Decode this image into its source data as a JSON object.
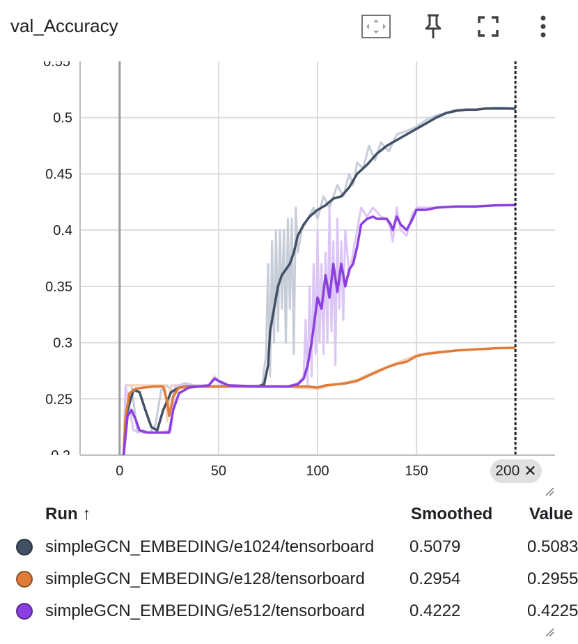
{
  "header": {
    "title": "val_Accuracy",
    "icons": [
      "fit-domain-icon",
      "pin-icon",
      "fullscreen-icon",
      "more-vert-icon"
    ]
  },
  "chart_data": {
    "type": "line",
    "title": "val_Accuracy",
    "xlabel": "",
    "ylabel": "",
    "xlim": [
      -20,
      220
    ],
    "ylim": [
      0.2,
      0.55
    ],
    "x_ticks": [
      "0",
      "50",
      "100",
      "150",
      "200"
    ],
    "y_ticks": [
      "0.25",
      "0.3",
      "0.35",
      "0.4",
      "0.45",
      "0.5"
    ],
    "grid": true,
    "selected_step": "200",
    "series": [
      {
        "name": "simpleGCN_EMBEDING/e1024/tensorboard",
        "color": "#425066",
        "raw_color": "#c7cdd8",
        "smoothed": [
          [
            2,
            0.2
          ],
          [
            4,
            0.24
          ],
          [
            7,
            0.258
          ],
          [
            10,
            0.256
          ],
          [
            13,
            0.24
          ],
          [
            16,
            0.225
          ],
          [
            19,
            0.222
          ],
          [
            22,
            0.24
          ],
          [
            26,
            0.256
          ],
          [
            30,
            0.26
          ],
          [
            35,
            0.261
          ],
          [
            40,
            0.261
          ],
          [
            50,
            0.261
          ],
          [
            60,
            0.261
          ],
          [
            70,
            0.261
          ],
          [
            73,
            0.263
          ],
          [
            75,
            0.28
          ],
          [
            76,
            0.31
          ],
          [
            78,
            0.33
          ],
          [
            80,
            0.35
          ],
          [
            82,
            0.36
          ],
          [
            84,
            0.365
          ],
          [
            86,
            0.37
          ],
          [
            88,
            0.38
          ],
          [
            90,
            0.395
          ],
          [
            93,
            0.405
          ],
          [
            96,
            0.412
          ],
          [
            100,
            0.418
          ],
          [
            104,
            0.422
          ],
          [
            108,
            0.428
          ],
          [
            112,
            0.43
          ],
          [
            116,
            0.438
          ],
          [
            120,
            0.45
          ],
          [
            125,
            0.458
          ],
          [
            130,
            0.468
          ],
          [
            135,
            0.475
          ],
          [
            140,
            0.48
          ],
          [
            145,
            0.485
          ],
          [
            150,
            0.49
          ],
          [
            155,
            0.495
          ],
          [
            160,
            0.5
          ],
          [
            165,
            0.504
          ],
          [
            170,
            0.506
          ],
          [
            175,
            0.507
          ],
          [
            180,
            0.507
          ],
          [
            185,
            0.508
          ],
          [
            190,
            0.508
          ],
          [
            195,
            0.508
          ],
          [
            200,
            0.5079
          ]
        ],
        "raw": [
          [
            2,
            0.2
          ],
          [
            3,
            0.262
          ],
          [
            6,
            0.262
          ],
          [
            9,
            0.22
          ],
          [
            12,
            0.222
          ],
          [
            15,
            0.22
          ],
          [
            18,
            0.226
          ],
          [
            21,
            0.258
          ],
          [
            24,
            0.262
          ],
          [
            27,
            0.255
          ],
          [
            30,
            0.262
          ],
          [
            33,
            0.264
          ],
          [
            40,
            0.261
          ],
          [
            60,
            0.261
          ],
          [
            72,
            0.262
          ],
          [
            74,
            0.29
          ],
          [
            75,
            0.37
          ],
          [
            76,
            0.27
          ],
          [
            77,
            0.39
          ],
          [
            78,
            0.3
          ],
          [
            79,
            0.4
          ],
          [
            80,
            0.31
          ],
          [
            81,
            0.4
          ],
          [
            82,
            0.33
          ],
          [
            83,
            0.4
          ],
          [
            84,
            0.3
          ],
          [
            85,
            0.41
          ],
          [
            86,
            0.33
          ],
          [
            87,
            0.41
          ],
          [
            88,
            0.29
          ],
          [
            89,
            0.42
          ],
          [
            90,
            0.38
          ],
          [
            92,
            0.4
          ],
          [
            95,
            0.41
          ],
          [
            98,
            0.42
          ],
          [
            100,
            0.41
          ],
          [
            103,
            0.43
          ],
          [
            106,
            0.42
          ],
          [
            110,
            0.44
          ],
          [
            113,
            0.43
          ],
          [
            116,
            0.45
          ],
          [
            118,
            0.44
          ],
          [
            120,
            0.46
          ],
          [
            123,
            0.455
          ],
          [
            126,
            0.475
          ],
          [
            129,
            0.462
          ],
          [
            132,
            0.478
          ],
          [
            136,
            0.47
          ],
          [
            140,
            0.485
          ],
          [
            145,
            0.488
          ],
          [
            150,
            0.492
          ],
          [
            155,
            0.498
          ],
          [
            160,
            0.502
          ],
          [
            170,
            0.507
          ],
          [
            180,
            0.507
          ],
          [
            190,
            0.509
          ],
          [
            200,
            0.5083
          ]
        ]
      },
      {
        "name": "simpleGCN_EMBEDING/e128/tensorboard",
        "color": "#e07b39",
        "raw_color": "#f6d2b8",
        "smoothed": [
          [
            2,
            0.2
          ],
          [
            3,
            0.235
          ],
          [
            5,
            0.255
          ],
          [
            8,
            0.259
          ],
          [
            12,
            0.26
          ],
          [
            18,
            0.261
          ],
          [
            22,
            0.261
          ],
          [
            24,
            0.248
          ],
          [
            25,
            0.235
          ],
          [
            27,
            0.252
          ],
          [
            30,
            0.26
          ],
          [
            40,
            0.261
          ],
          [
            60,
            0.261
          ],
          [
            80,
            0.261
          ],
          [
            95,
            0.261
          ],
          [
            100,
            0.26
          ],
          [
            104,
            0.262
          ],
          [
            110,
            0.263
          ],
          [
            115,
            0.264
          ],
          [
            120,
            0.266
          ],
          [
            125,
            0.27
          ],
          [
            130,
            0.274
          ],
          [
            135,
            0.278
          ],
          [
            140,
            0.281
          ],
          [
            145,
            0.283
          ],
          [
            150,
            0.288
          ],
          [
            155,
            0.29
          ],
          [
            160,
            0.291
          ],
          [
            170,
            0.293
          ],
          [
            180,
            0.294
          ],
          [
            190,
            0.295
          ],
          [
            200,
            0.2954
          ]
        ],
        "raw": [
          [
            2,
            0.2
          ],
          [
            3,
            0.262
          ],
          [
            8,
            0.262
          ],
          [
            20,
            0.262
          ],
          [
            23,
            0.262
          ],
          [
            24,
            0.23
          ],
          [
            25,
            0.25
          ],
          [
            26,
            0.262
          ],
          [
            40,
            0.261
          ],
          [
            60,
            0.261
          ],
          [
            80,
            0.261
          ],
          [
            100,
            0.259
          ],
          [
            110,
            0.263
          ],
          [
            120,
            0.267
          ],
          [
            130,
            0.275
          ],
          [
            140,
            0.282
          ],
          [
            150,
            0.289
          ],
          [
            160,
            0.292
          ],
          [
            170,
            0.293
          ],
          [
            180,
            0.294
          ],
          [
            190,
            0.295
          ],
          [
            200,
            0.2955
          ]
        ]
      },
      {
        "name": "simpleGCN_EMBEDING/e512/tensorboard",
        "color": "#8b3fe0",
        "raw_color": "#dcc6f5",
        "smoothed": [
          [
            2,
            0.2
          ],
          [
            4,
            0.235
          ],
          [
            6,
            0.24
          ],
          [
            8,
            0.232
          ],
          [
            10,
            0.222
          ],
          [
            14,
            0.22
          ],
          [
            20,
            0.22
          ],
          [
            25,
            0.22
          ],
          [
            27,
            0.24
          ],
          [
            30,
            0.255
          ],
          [
            35,
            0.26
          ],
          [
            40,
            0.261
          ],
          [
            45,
            0.262
          ],
          [
            48,
            0.268
          ],
          [
            50,
            0.266
          ],
          [
            55,
            0.262
          ],
          [
            70,
            0.261
          ],
          [
            85,
            0.261
          ],
          [
            90,
            0.263
          ],
          [
            93,
            0.268
          ],
          [
            95,
            0.28
          ],
          [
            97,
            0.3
          ],
          [
            100,
            0.34
          ],
          [
            102,
            0.33
          ],
          [
            104,
            0.36
          ],
          [
            106,
            0.34
          ],
          [
            108,
            0.37
          ],
          [
            110,
            0.345
          ],
          [
            112,
            0.37
          ],
          [
            114,
            0.35
          ],
          [
            116,
            0.365
          ],
          [
            118,
            0.37
          ],
          [
            120,
            0.385
          ],
          [
            122,
            0.405
          ],
          [
            125,
            0.41
          ],
          [
            128,
            0.412
          ],
          [
            130,
            0.41
          ],
          [
            132,
            0.41
          ],
          [
            135,
            0.41
          ],
          [
            137,
            0.405
          ],
          [
            138,
            0.4
          ],
          [
            140,
            0.412
          ],
          [
            142,
            0.405
          ],
          [
            145,
            0.4
          ],
          [
            148,
            0.41
          ],
          [
            150,
            0.418
          ],
          [
            155,
            0.418
          ],
          [
            160,
            0.42
          ],
          [
            170,
            0.421
          ],
          [
            180,
            0.421
          ],
          [
            190,
            0.422
          ],
          [
            200,
            0.4222
          ]
        ],
        "raw": [
          [
            2,
            0.2
          ],
          [
            3,
            0.262
          ],
          [
            7,
            0.222
          ],
          [
            12,
            0.22
          ],
          [
            20,
            0.22
          ],
          [
            26,
            0.222
          ],
          [
            28,
            0.262
          ],
          [
            45,
            0.262
          ],
          [
            48,
            0.27
          ],
          [
            52,
            0.262
          ],
          [
            70,
            0.261
          ],
          [
            85,
            0.261
          ],
          [
            90,
            0.264
          ],
          [
            93,
            0.27
          ],
          [
            94,
            0.32
          ],
          [
            95,
            0.26
          ],
          [
            96,
            0.35
          ],
          [
            97,
            0.27
          ],
          [
            98,
            0.37
          ],
          [
            99,
            0.29
          ],
          [
            100,
            0.4
          ],
          [
            101,
            0.3
          ],
          [
            102,
            0.37
          ],
          [
            103,
            0.29
          ],
          [
            104,
            0.38
          ],
          [
            105,
            0.3
          ],
          [
            106,
            0.42
          ],
          [
            107,
            0.31
          ],
          [
            108,
            0.39
          ],
          [
            109,
            0.28
          ],
          [
            110,
            0.41
          ],
          [
            111,
            0.33
          ],
          [
            112,
            0.39
          ],
          [
            113,
            0.32
          ],
          [
            114,
            0.4
          ],
          [
            116,
            0.36
          ],
          [
            118,
            0.38
          ],
          [
            120,
            0.4
          ],
          [
            122,
            0.42
          ],
          [
            125,
            0.412
          ],
          [
            128,
            0.42
          ],
          [
            132,
            0.412
          ],
          [
            135,
            0.41
          ],
          [
            137,
            0.4
          ],
          [
            138,
            0.39
          ],
          [
            140,
            0.42
          ],
          [
            142,
            0.4
          ],
          [
            145,
            0.395
          ],
          [
            148,
            0.415
          ],
          [
            150,
            0.42
          ],
          [
            160,
            0.42
          ],
          [
            170,
            0.421
          ],
          [
            180,
            0.421
          ],
          [
            190,
            0.422
          ],
          [
            200,
            0.4225
          ]
        ]
      }
    ]
  },
  "table": {
    "headers": {
      "run": "Run ↑",
      "smoothed": "Smoothed",
      "value": "Value"
    },
    "rows": [
      {
        "name": "simpleGCN_EMBEDING/e1024/tensorboard",
        "smoothed": "0.5079",
        "value": "0.5083",
        "color": "#425066"
      },
      {
        "name": "simpleGCN_EMBEDING/e128/tensorboard",
        "smoothed": "0.2954",
        "value": "0.2955",
        "color": "#e07b39"
      },
      {
        "name": "simpleGCN_EMBEDING/e512/tensorboard",
        "smoothed": "0.4222",
        "value": "0.4225",
        "color": "#8b3fe0"
      }
    ]
  }
}
